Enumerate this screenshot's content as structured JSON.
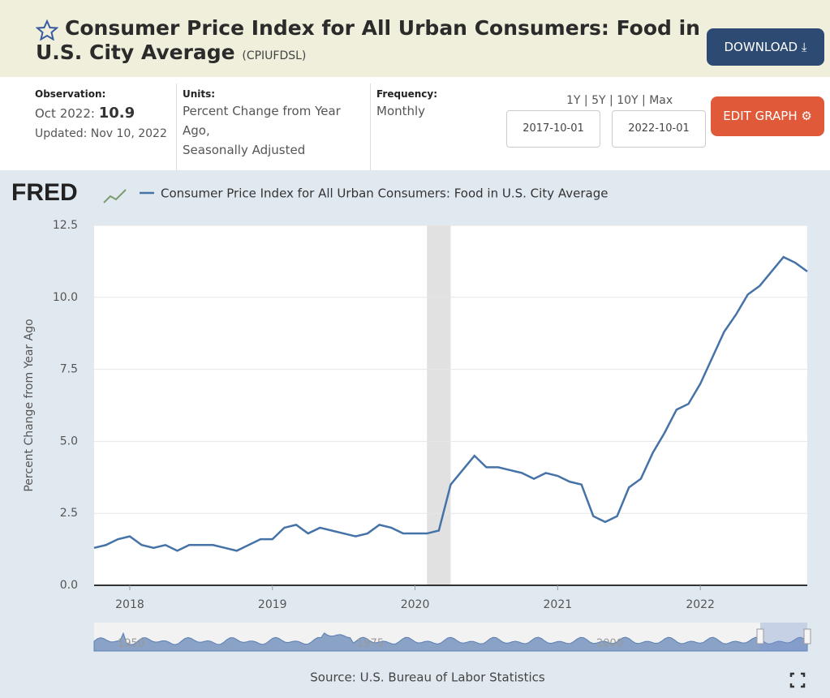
{
  "header": {
    "title": "Consumer Price Index for All Urban Consumers: Food in U.S. City Average",
    "series_id": "(CPIUFDSL)",
    "download": "DOWNLOAD"
  },
  "info": {
    "observation_label": "Observation:",
    "observation_date": "Oct 2022:",
    "observation_value": "10.9",
    "updated": "Updated: Nov 10, 2022",
    "units_label": "Units:",
    "units_line1": "Percent Change from Year",
    "units_line2": "Ago,",
    "units_line3": "Seasonally Adjusted",
    "frequency_label": "Frequency:",
    "frequency": "Monthly",
    "ranges": [
      "1Y",
      "5Y",
      "10Y",
      "Max"
    ],
    "start_date": "2017-10-01",
    "end_date": "2022-10-01",
    "edit_graph": "EDIT GRAPH"
  },
  "chart_data": {
    "type": "line",
    "brand": "FRED",
    "y_label": "Percent Change from Year Ago",
    "source": "Source: U.S. Bureau of Labor Statistics",
    "categories": [
      null,
      null,
      null,
      "2018",
      null,
      null,
      null,
      null,
      null,
      null,
      null,
      null,
      null,
      null,
      null,
      "2019",
      null,
      null,
      null,
      null,
      null,
      null,
      null,
      null,
      null,
      null,
      null,
      "2020",
      null,
      null,
      null,
      null,
      null,
      null,
      null,
      null,
      null,
      null,
      null,
      "2021",
      null,
      null,
      null,
      null,
      null,
      null,
      null,
      null,
      null,
      null,
      null,
      "2022",
      null,
      null,
      null,
      null,
      null,
      null,
      null,
      null,
      null
    ],
    "series": [
      {
        "name": "Consumer Price Index for All Urban Consumers: Food in U.S. City Average",
        "color": "#4572a7",
        "values": [
          1.3,
          1.4,
          1.6,
          1.7,
          1.4,
          1.3,
          1.4,
          1.2,
          1.4,
          1.4,
          1.4,
          1.3,
          1.2,
          1.4,
          1.6,
          1.6,
          2.0,
          2.1,
          1.8,
          2.0,
          1.9,
          1.8,
          1.7,
          1.8,
          2.1,
          2.0,
          1.8,
          1.8,
          1.8,
          1.9,
          3.5,
          4.0,
          4.5,
          4.1,
          4.1,
          4.0,
          3.9,
          3.7,
          3.9,
          3.8,
          3.6,
          3.5,
          2.4,
          2.2,
          2.4,
          3.4,
          3.7,
          4.6,
          5.3,
          6.1,
          6.3,
          7.0,
          7.9,
          8.8,
          9.4,
          10.1,
          10.4,
          10.9,
          11.4,
          11.2,
          10.9
        ]
      }
    ],
    "shaded": [
      28,
      30
    ],
    "ylim": [
      0,
      12.5
    ],
    "yticks": [
      {
        "value": 0,
        "label": "0.0"
      },
      2.5,
      {
        "value": 5,
        "label": "5.0"
      },
      7.5,
      {
        "value": 10,
        "label": "10.0"
      },
      12.5
    ],
    "grid": true,
    "navigator_labels": [
      "1950",
      "1975",
      "2000"
    ]
  }
}
